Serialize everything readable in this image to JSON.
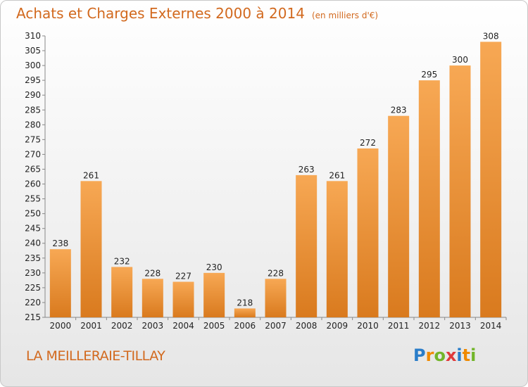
{
  "header": {
    "title": "Achats et Charges Externes 2000 à 2014",
    "unit": "(en milliers d'€)"
  },
  "footer": {
    "town": "LA MEILLERAIE-TILLAY",
    "logo_letters": [
      "P",
      "r",
      "o",
      "x",
      "i",
      "t",
      "i"
    ]
  },
  "colors": {
    "bar_light": "#f7a854",
    "bar_dark": "#d97a1e",
    "text_accent": "#d2691e",
    "logo_p": "#2a7dc9",
    "logo_r": "#f08a00",
    "logo_o": "#72b52a",
    "logo_x": "#e03a3a",
    "logo_i": "#2a7dc9",
    "logo_t": "#f08a00",
    "logo_i2": "#72b52a"
  },
  "chart_data": {
    "type": "bar",
    "title": "Achats et Charges Externes 2000 à 2014",
    "subtitle": "(en milliers d'€)",
    "categories": [
      "2000",
      "2001",
      "2002",
      "2003",
      "2004",
      "2005",
      "2006",
      "2007",
      "2008",
      "2009",
      "2010",
      "2011",
      "2012",
      "2013",
      "2014"
    ],
    "values": [
      238,
      261,
      232,
      228,
      227,
      230,
      218,
      228,
      263,
      261,
      272,
      283,
      295,
      300,
      308
    ],
    "ylim": [
      215,
      310
    ],
    "yticks": [
      215,
      220,
      225,
      230,
      235,
      240,
      245,
      250,
      255,
      260,
      265,
      270,
      275,
      280,
      285,
      290,
      295,
      300,
      305,
      310
    ],
    "xlabel": "",
    "ylabel": "",
    "grid": false,
    "data_labels": true
  }
}
